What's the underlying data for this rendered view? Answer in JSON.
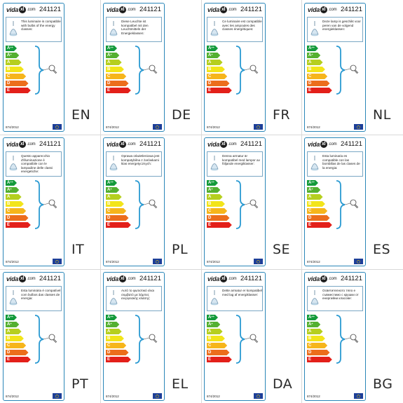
{
  "brand": {
    "logo_prefix": "vida",
    "logo_mid": "xl",
    "logo_suffix": ".com"
  },
  "model": "241121",
  "regulation": "874/2012",
  "energy_classes": [
    {
      "label": "A",
      "sup": "++",
      "color": "#139a3a"
    },
    {
      "label": "A",
      "sup": "+",
      "color": "#54b030"
    },
    {
      "label": "A",
      "sup": "",
      "color": "#b5cf1f"
    },
    {
      "label": "B",
      "sup": "",
      "color": "#f2e51a"
    },
    {
      "label": "C",
      "sup": "",
      "color": "#f6b51b"
    },
    {
      "label": "D",
      "sup": "",
      "color": "#ec6d1c"
    },
    {
      "label": "E",
      "sup": "",
      "color": "#e3201a"
    }
  ],
  "colors": {
    "card_border": "#2a86b8",
    "info_border": "#7aa7c4",
    "eu_flag": "#1d3f99"
  },
  "icons": {
    "lamp": "chandelier-icon",
    "bulb": "bulb-icon",
    "flag": "eu-flag-icon"
  },
  "labels": [
    {
      "lang": "EN",
      "text": "This luminaire is compatible with bulbs of the energy classes:"
    },
    {
      "lang": "DE",
      "text": "Diese Leuchte ist kompatibel mit den Leuchtmitteln der Energieklassen:"
    },
    {
      "lang": "FR",
      "text": "Ce luminaire est compatible avec les ampoules des classes énergétiques:"
    },
    {
      "lang": "NL",
      "text": "Deze lamp is geschikt voor peren van de volgend energieklassen:"
    },
    {
      "lang": "IT",
      "text": "Questo apparecchio d'illuminazione è compatibile con le lampadine delle classi energetiche:"
    },
    {
      "lang": "PL",
      "text": "Oprawa oświetleniowa jest kompatybilna z żarówkami klas energetycznych:"
    },
    {
      "lang": "SE",
      "text": "Denna armatur är kompatibel med lampor av följande energiklasser:"
    },
    {
      "lang": "ES",
      "text": "Esta luminaria es compatible con las bombillas de las clases de la energia:"
    },
    {
      "lang": "PT",
      "text": "Esta luminária é compatível com bulbos das classes de energia:"
    },
    {
      "lang": "EL",
      "text": "Αυτό το φωτιστικό είναι συμβατό με λάμπες ενεργειακής κλάσης:"
    },
    {
      "lang": "DA",
      "text": "Dette armatur er kompatibel med lag af energiklasser:"
    },
    {
      "lang": "BG",
      "text": "Осветителното тяло е съвместимо с крушки от енергийни класове:"
    }
  ]
}
